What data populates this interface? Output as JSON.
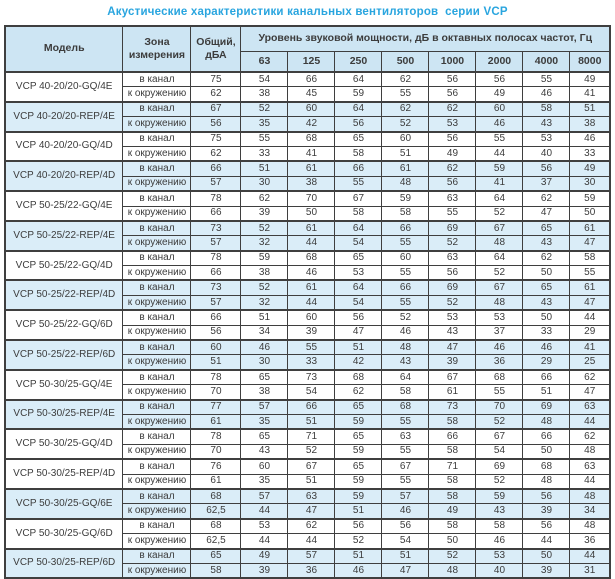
{
  "title": "Акустические характеристики канальных вентиляторов  серии VCP",
  "colors": {
    "title_text": "#29a5df",
    "header_bg": "#cde5f3",
    "band_row_bg": "#daedf8",
    "border": "#3f3f3f",
    "cell_text": "#3c3c3c"
  },
  "table": {
    "headers": {
      "model": "Модель",
      "zone": "Зона измерения",
      "total": "Общий, дБА",
      "band_header": "Уровень звуковой мощности, дБ в октавных полосах частот, Гц",
      "frequencies": [
        "63",
        "125",
        "250",
        "500",
        "1000",
        "2000",
        "4000",
        "8000"
      ]
    },
    "zone_labels": [
      "в канал",
      "к окружению"
    ],
    "rows": [
      {
        "model": "VCP 40-20/20-GQ/4E",
        "shaded": false,
        "in_duct": {
          "total": "75",
          "bands": [
            54,
            66,
            64,
            62,
            56,
            56,
            55,
            49
          ]
        },
        "to_env": {
          "total": "62",
          "bands": [
            38,
            45,
            59,
            55,
            56,
            49,
            46,
            41
          ]
        }
      },
      {
        "model": "VCP 40-20/20-REP/4E",
        "shaded": true,
        "in_duct": {
          "total": "67",
          "bands": [
            52,
            60,
            64,
            62,
            62,
            60,
            58,
            51
          ]
        },
        "to_env": {
          "total": "56",
          "bands": [
            35,
            42,
            56,
            52,
            53,
            46,
            43,
            38
          ]
        }
      },
      {
        "model": "VCP 40-20/20-GQ/4D",
        "shaded": false,
        "in_duct": {
          "total": "75",
          "bands": [
            55,
            68,
            65,
            60,
            56,
            55,
            53,
            46
          ]
        },
        "to_env": {
          "total": "62",
          "bands": [
            33,
            41,
            58,
            51,
            49,
            44,
            40,
            33
          ]
        }
      },
      {
        "model": "VCP 40-20/20-REP/4D",
        "shaded": true,
        "in_duct": {
          "total": "66",
          "bands": [
            51,
            61,
            66,
            61,
            62,
            59,
            56,
            49
          ]
        },
        "to_env": {
          "total": "57",
          "bands": [
            30,
            38,
            55,
            48,
            56,
            41,
            37,
            30
          ]
        }
      },
      {
        "model": "VCP 50-25/22-GQ/4E",
        "shaded": false,
        "in_duct": {
          "total": "78",
          "bands": [
            62,
            70,
            67,
            59,
            63,
            64,
            62,
            59
          ]
        },
        "to_env": {
          "total": "66",
          "bands": [
            39,
            50,
            58,
            58,
            55,
            52,
            47,
            50
          ]
        }
      },
      {
        "model": "VCP 50-25/22-REP/4E",
        "shaded": true,
        "in_duct": {
          "total": "73",
          "bands": [
            52,
            61,
            64,
            66,
            69,
            67,
            65,
            61
          ]
        },
        "to_env": {
          "total": "57",
          "bands": [
            32,
            44,
            54,
            55,
            52,
            48,
            43,
            47
          ]
        }
      },
      {
        "model": "VCP 50-25/22-GQ/4D",
        "shaded": false,
        "in_duct": {
          "total": "78",
          "bands": [
            59,
            68,
            65,
            60,
            63,
            64,
            62,
            58
          ]
        },
        "to_env": {
          "total": "66",
          "bands": [
            38,
            46,
            53,
            55,
            56,
            52,
            50,
            55
          ]
        }
      },
      {
        "model": "VCP 50-25/22-REP/4D",
        "shaded": true,
        "in_duct": {
          "total": "73",
          "bands": [
            52,
            61,
            64,
            66,
            69,
            67,
            65,
            61
          ]
        },
        "to_env": {
          "total": "57",
          "bands": [
            32,
            44,
            54,
            55,
            52,
            48,
            43,
            47
          ]
        }
      },
      {
        "model": "VCP 50-25/22-GQ/6D",
        "shaded": false,
        "in_duct": {
          "total": "66",
          "bands": [
            51,
            60,
            56,
            52,
            53,
            53,
            50,
            44
          ]
        },
        "to_env": {
          "total": "56",
          "bands": [
            34,
            39,
            47,
            46,
            43,
            37,
            33,
            29
          ]
        }
      },
      {
        "model": "VCP 50-25/22-REP/6D",
        "shaded": true,
        "in_duct": {
          "total": "60",
          "bands": [
            46,
            55,
            51,
            48,
            47,
            46,
            46,
            41
          ]
        },
        "to_env": {
          "total": "51",
          "bands": [
            30,
            33,
            42,
            43,
            39,
            36,
            29,
            25
          ]
        }
      },
      {
        "model": "VCP 50-30/25-GQ/4E",
        "shaded": false,
        "in_duct": {
          "total": "78",
          "bands": [
            65,
            73,
            68,
            64,
            67,
            68,
            66,
            62
          ]
        },
        "to_env": {
          "total": "70",
          "bands": [
            38,
            54,
            62,
            58,
            61,
            55,
            51,
            47
          ]
        }
      },
      {
        "model": "VCP 50-30/25-REP/4E",
        "shaded": true,
        "in_duct": {
          "total": "77",
          "bands": [
            57,
            66,
            65,
            68,
            73,
            70,
            69,
            63
          ]
        },
        "to_env": {
          "total": "61",
          "bands": [
            35,
            51,
            59,
            55,
            58,
            52,
            48,
            44
          ]
        }
      },
      {
        "model": "VCP 50-30/25-GQ/4D",
        "shaded": false,
        "in_duct": {
          "total": "78",
          "bands": [
            65,
            71,
            65,
            63,
            66,
            67,
            66,
            62
          ]
        },
        "to_env": {
          "total": "70",
          "bands": [
            43,
            52,
            59,
            55,
            58,
            54,
            50,
            48
          ]
        }
      },
      {
        "model": "VCP 50-30/25-REP/4D",
        "shaded": false,
        "in_duct": {
          "total": "76",
          "bands": [
            60,
            67,
            65,
            67,
            71,
            69,
            68,
            63
          ]
        },
        "to_env": {
          "total": "61",
          "bands": [
            35,
            51,
            59,
            55,
            58,
            52,
            48,
            44
          ]
        }
      },
      {
        "model": "VCP 50-30/25-GQ/6E",
        "shaded": true,
        "in_duct": {
          "total": "68",
          "bands": [
            57,
            63,
            59,
            57,
            58,
            59,
            56,
            48
          ]
        },
        "to_env": {
          "total": "62,5",
          "bands": [
            44,
            47,
            51,
            46,
            49,
            43,
            39,
            34
          ]
        }
      },
      {
        "model": "VCP 50-30/25-GQ/6D",
        "shaded": false,
        "in_duct": {
          "total": "68",
          "bands": [
            53,
            62,
            56,
            56,
            58,
            58,
            56,
            48
          ]
        },
        "to_env": {
          "total": "62,5",
          "bands": [
            44,
            44,
            52,
            54,
            50,
            46,
            44,
            36
          ]
        }
      },
      {
        "model": "VCP 50-30/25-REP/6D",
        "shaded": true,
        "in_duct": {
          "total": "65",
          "bands": [
            49,
            57,
            51,
            51,
            52,
            53,
            50,
            44
          ]
        },
        "to_env": {
          "total": "58",
          "bands": [
            39,
            36,
            46,
            47,
            48,
            40,
            39,
            31
          ]
        }
      }
    ]
  }
}
